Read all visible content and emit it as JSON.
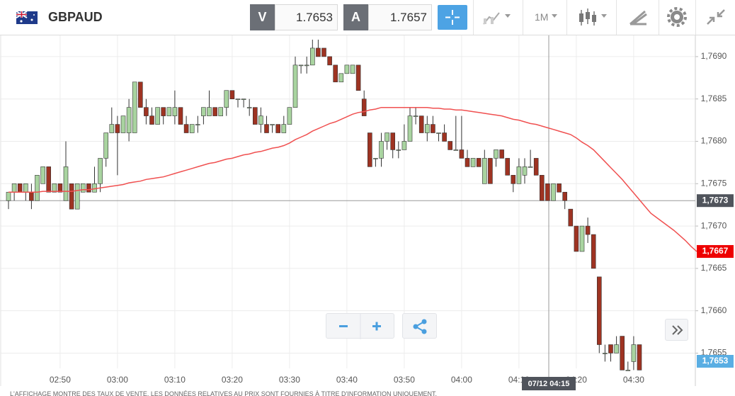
{
  "header": {
    "symbol": "GBPAUD",
    "bid_label": "V",
    "bid": 1.7653,
    "ask_label": "A",
    "ask": 1.7657,
    "timeframe": "1M"
  },
  "chart_data": {
    "type": "candlestick",
    "categories": [
      null,
      null,
      null,
      null,
      null,
      null,
      null,
      null,
      null,
      "02:50",
      null,
      null,
      null,
      null,
      null,
      null,
      null,
      null,
      null,
      "03:00",
      null,
      null,
      null,
      null,
      null,
      null,
      null,
      null,
      null,
      "03:10",
      null,
      null,
      null,
      null,
      null,
      null,
      null,
      null,
      null,
      "03:20",
      null,
      null,
      null,
      null,
      null,
      null,
      null,
      null,
      null,
      "03:30",
      null,
      null,
      null,
      null,
      null,
      null,
      null,
      null,
      null,
      "03:40",
      null,
      null,
      null,
      null,
      null,
      null,
      null,
      null,
      null,
      "03:50",
      null,
      null,
      null,
      null,
      null,
      null,
      null,
      null,
      null,
      "04:00",
      null,
      null,
      null,
      null,
      null,
      null,
      null,
      null,
      null,
      "04:10",
      null,
      null,
      null,
      null,
      null,
      null,
      null,
      null,
      null,
      "04:20",
      null,
      null,
      null,
      null,
      null,
      null,
      null,
      null,
      null,
      "04:30",
      null,
      null,
      null,
      null,
      null,
      null,
      null,
      null,
      null,
      null,
      null
    ],
    "candles": [
      [
        1.7673,
        1.7674,
        1.7672,
        1.7674
      ],
      [
        1.7674,
        1.7675,
        1.7673,
        1.7675
      ],
      [
        1.7675,
        1.7675,
        1.7674,
        1.7674
      ],
      [
        1.7674,
        1.7675,
        1.7673,
        1.7675
      ],
      [
        1.7674,
        1.7675,
        1.7672,
        1.7673
      ],
      [
        1.7673,
        1.7676,
        1.7673,
        1.7676
      ],
      [
        1.7675,
        1.7677,
        1.7675,
        1.7677
      ],
      [
        1.7677,
        1.7677,
        1.7674,
        1.7674
      ],
      [
        1.7674,
        1.7675,
        1.7674,
        1.7675
      ],
      [
        1.7675,
        1.7675,
        1.7674,
        1.7674
      ],
      [
        1.7673,
        1.768,
        1.7673,
        1.7677
      ],
      [
        1.7675,
        1.7675,
        1.7672,
        1.7672
      ],
      [
        1.7672,
        1.7675,
        1.7672,
        1.7675
      ],
      [
        1.7674,
        1.7675,
        1.7674,
        1.7675
      ],
      [
        1.7675,
        1.7675,
        1.7674,
        1.7674
      ],
      [
        1.7674,
        1.7677,
        1.7674,
        1.7675
      ],
      [
        1.7675,
        1.7678,
        1.7674,
        1.7678
      ],
      [
        1.7678,
        1.7681,
        1.7677,
        1.7681
      ],
      [
        1.7681,
        1.7684,
        1.7681,
        1.7682
      ],
      [
        1.7682,
        1.7683,
        1.7676,
        1.7681
      ],
      [
        1.7681,
        1.7683,
        1.7681,
        1.7683
      ],
      [
        1.7681,
        1.7685,
        1.768,
        1.7684
      ],
      [
        1.7681,
        1.7687,
        1.7681,
        1.7687
      ],
      [
        1.7687,
        1.7687,
        1.7684,
        1.7684
      ],
      [
        1.7684,
        1.7685,
        1.7682,
        1.7683
      ],
      [
        1.7683,
        1.7684,
        1.7682,
        1.7682
      ],
      [
        1.7682,
        1.7684,
        1.7682,
        1.7684
      ],
      [
        1.7684,
        1.7684,
        1.7682,
        1.7683
      ],
      [
        1.7683,
        1.7684,
        1.7683,
        1.7684
      ],
      [
        1.7683,
        1.7686,
        1.7682,
        1.7684
      ],
      [
        1.7684,
        1.7684,
        1.7682,
        1.7682
      ],
      [
        1.7682,
        1.7683,
        1.7681,
        1.7681
      ],
      [
        1.7681,
        1.7682,
        1.7681,
        1.7682
      ],
      [
        1.7682,
        1.7683,
        1.7681,
        1.7682
      ],
      [
        1.7683,
        1.7684,
        1.7682,
        1.7684
      ],
      [
        1.7683,
        1.7686,
        1.7683,
        1.7684
      ],
      [
        1.7684,
        1.7684,
        1.7683,
        1.7683
      ],
      [
        1.7683,
        1.7684,
        1.7683,
        1.7684
      ],
      [
        1.7684,
        1.7686,
        1.7683,
        1.7686
      ],
      [
        1.7686,
        1.7686,
        1.7685,
        1.7685
      ],
      [
        1.7685,
        1.7685,
        1.7684,
        1.7685
      ],
      [
        1.7685,
        1.7685,
        1.7684,
        1.7685
      ],
      [
        1.7684,
        1.7685,
        1.7683,
        1.7684
      ],
      [
        1.7684,
        1.7684,
        1.7682,
        1.7682
      ],
      [
        1.7682,
        1.7684,
        1.7681,
        1.7683
      ],
      [
        1.7682,
        1.7683,
        1.7681,
        1.7681
      ],
      [
        1.7682,
        1.7682,
        1.7681,
        1.7682
      ],
      [
        1.7682,
        1.7682,
        1.7681,
        1.7681
      ],
      [
        1.7681,
        1.7683,
        1.7681,
        1.7682
      ],
      [
        1.7682,
        1.7684,
        1.7682,
        1.7684
      ],
      [
        1.7684,
        1.769,
        1.7684,
        1.7689
      ],
      [
        1.7689,
        1.7689,
        1.7688,
        1.7689
      ],
      [
        1.7689,
        1.769,
        1.7688,
        1.7689
      ],
      [
        1.7689,
        1.7692,
        1.7689,
        1.7691
      ],
      [
        1.7691,
        1.7692,
        1.769,
        1.769
      ],
      [
        1.7691,
        1.7691,
        1.769,
        1.769
      ],
      [
        1.769,
        1.769,
        1.7689,
        1.7689
      ],
      [
        1.7689,
        1.7689,
        1.7687,
        1.7687
      ],
      [
        1.7687,
        1.7688,
        1.7687,
        1.7688
      ],
      [
        1.7688,
        1.7689,
        1.7688,
        1.7689
      ],
      [
        1.7688,
        1.7689,
        1.7688,
        1.7689
      ],
      [
        1.7689,
        1.7689,
        1.7686,
        1.7686
      ],
      [
        1.7685,
        1.7686,
        1.7683,
        1.7683
      ],
      [
        1.7681,
        1.7681,
        1.7677,
        1.7677
      ],
      [
        1.7678,
        1.7678,
        1.7677,
        1.7678
      ],
      [
        1.7678,
        1.7681,
        1.7677,
        1.768
      ],
      [
        1.768,
        1.7681,
        1.7679,
        1.7681
      ],
      [
        1.7681,
        1.7681,
        1.7678,
        1.7679
      ],
      [
        1.7679,
        1.768,
        1.7678,
        1.7679
      ],
      [
        1.7679,
        1.7682,
        1.7679,
        1.768
      ],
      [
        1.768,
        1.7684,
        1.768,
        1.7683
      ],
      [
        1.7683,
        1.7684,
        1.7682,
        1.7683
      ],
      [
        1.7683,
        1.7683,
        1.7681,
        1.7681
      ],
      [
        1.7681,
        1.7683,
        1.768,
        1.7682
      ],
      [
        1.7682,
        1.7683,
        1.7681,
        1.7681
      ],
      [
        1.7681,
        1.7681,
        1.768,
        1.7681
      ],
      [
        1.7681,
        1.7682,
        1.768,
        1.768
      ],
      [
        1.768,
        1.768,
        1.7679,
        1.7679
      ],
      [
        1.7679,
        1.7683,
        1.7679,
        1.7679
      ],
      [
        1.7679,
        1.7683,
        1.7678,
        1.7678
      ],
      [
        1.7678,
        1.7679,
        1.7677,
        1.7677
      ],
      [
        1.7677,
        1.7678,
        1.7677,
        1.7678
      ],
      [
        1.7678,
        1.7678,
        1.7677,
        1.7677
      ],
      [
        1.7675,
        1.7679,
        1.7675,
        1.7678
      ],
      [
        1.7678,
        1.7678,
        1.7675,
        1.7675
      ],
      [
        1.7678,
        1.7679,
        1.7677,
        1.7679
      ],
      [
        1.7679,
        1.7679,
        1.7678,
        1.7678
      ],
      [
        1.7678,
        1.7678,
        1.7676,
        1.7676
      ],
      [
        1.7676,
        1.7676,
        1.7674,
        1.7675
      ],
      [
        1.7675,
        1.7678,
        1.7675,
        1.7677
      ],
      [
        1.7676,
        1.7678,
        1.7675,
        1.7677
      ],
      [
        1.7677,
        1.7679,
        1.7677,
        1.7677
      ],
      [
        1.7678,
        1.7678,
        1.7676,
        1.7676
      ],
      [
        1.7676,
        1.7676,
        1.7673,
        1.7673
      ],
      [
        1.7675,
        1.7675,
        1.7673,
        1.7673
      ],
      [
        1.7673,
        1.7675,
        1.7673,
        1.7675
      ],
      [
        1.7675,
        1.7675,
        1.7674,
        1.7674
      ],
      [
        1.7674,
        1.7674,
        1.7672,
        1.7673
      ],
      [
        1.7672,
        1.7672,
        1.767,
        1.767
      ],
      [
        1.767,
        1.767,
        1.7667,
        1.7667
      ],
      [
        1.7667,
        1.767,
        1.7667,
        1.767
      ],
      [
        1.767,
        1.7671,
        1.7668,
        1.7669
      ],
      [
        1.7669,
        1.7669,
        1.7665,
        1.7665
      ],
      [
        1.7664,
        1.7664,
        1.7655,
        1.7656
      ],
      [
        1.7655,
        1.7656,
        1.7654,
        1.7655
      ],
      [
        1.7656,
        1.7656,
        1.7654,
        1.7655
      ],
      [
        1.7655,
        1.7657,
        1.7655,
        1.7656
      ],
      [
        1.7657,
        1.7657,
        1.7653,
        1.7653
      ],
      [
        1.7653,
        1.7654,
        1.7653,
        1.7653
      ],
      [
        1.7654,
        1.7657,
        1.7653,
        1.7656
      ],
      [
        1.7656,
        1.7656,
        1.7653,
        1.7653
      ],
      null,
      null,
      null,
      null,
      null,
      null,
      null,
      null,
      null,
      null
    ],
    "colors": {
      "up": "#a9d4a0",
      "down": "#9e3322",
      "wick": "#333333"
    },
    "ma": {
      "color": "#f05050",
      "values": [
        1.7674,
        1.7674,
        1.7674,
        1.7674,
        1.7674,
        1.7674,
        1.76741,
        1.76741,
        1.76741,
        1.76741,
        1.76741,
        1.76741,
        1.76742,
        1.76743,
        1.76743,
        1.76744,
        1.76745,
        1.76746,
        1.76747,
        1.76748,
        1.76749,
        1.76751,
        1.76752,
        1.76753,
        1.76755,
        1.76756,
        1.76757,
        1.76758,
        1.7676,
        1.76762,
        1.76764,
        1.76766,
        1.76768,
        1.7677,
        1.76772,
        1.76774,
        1.76775,
        1.76777,
        1.76779,
        1.7678,
        1.76782,
        1.76784,
        1.76785,
        1.76787,
        1.76788,
        1.7679,
        1.76792,
        1.76793,
        1.76795,
        1.76798,
        1.76802,
        1.76805,
        1.76808,
        1.76812,
        1.76815,
        1.76818,
        1.76821,
        1.76823,
        1.76826,
        1.76829,
        1.76832,
        1.76834,
        1.76835,
        1.76837,
        1.76838,
        1.7684,
        1.7684,
        1.7684,
        1.7684,
        1.7684,
        1.7684,
        1.7684,
        1.7684,
        1.7684,
        1.76839,
        1.76839,
        1.76838,
        1.76838,
        1.76837,
        1.76837,
        1.76836,
        1.76835,
        1.76834,
        1.76833,
        1.76832,
        1.76831,
        1.7683,
        1.76828,
        1.76826,
        1.76825,
        1.76823,
        1.76821,
        1.7682,
        1.76818,
        1.76816,
        1.76814,
        1.76812,
        1.7681,
        1.76808,
        1.76804,
        1.76799,
        1.76795,
        1.7679,
        1.76783,
        1.76776,
        1.76769,
        1.76762,
        1.76755,
        1.76747,
        1.76739,
        1.76731,
        1.76723,
        1.76715,
        1.7671,
        1.76705,
        1.767,
        1.76695,
        1.76689,
        1.76683,
        1.76676,
        1.7667
      ]
    },
    "ylim": [
      1.76532,
      1.76925
    ],
    "yticks": [
      {
        "value": 1.7655,
        "label": "1,7655"
      },
      {
        "value": 1.766,
        "label": "1,7660"
      },
      {
        "value": 1.7665,
        "label": "1,7665"
      },
      {
        "value": 1.767,
        "label": "1,7670"
      },
      {
        "value": 1.7675,
        "label": "1,7675"
      },
      {
        "value": 1.768,
        "label": "1,7680"
      },
      {
        "value": 1.7685,
        "label": "1,7685"
      },
      {
        "value": 1.769,
        "label": "1,7690"
      }
    ],
    "grid": true,
    "crosshair": {
      "price": {
        "value": 1.7673,
        "label": "1,7673"
      },
      "time": "07/12 04:15"
    },
    "ma_last": {
      "value": 1.7667,
      "label": "1,7667"
    },
    "last_price": {
      "value": 1.7653,
      "label": "1,7653"
    }
  },
  "footer": {
    "disclaimer": "L'AFFICHAGE MONTRE DES TAUX DE VENTE. LES DONNÉES RELATIVES AU PRIX SONT FOURNIES À TITRE D'INFORMATION UNIQUEMENT."
  }
}
